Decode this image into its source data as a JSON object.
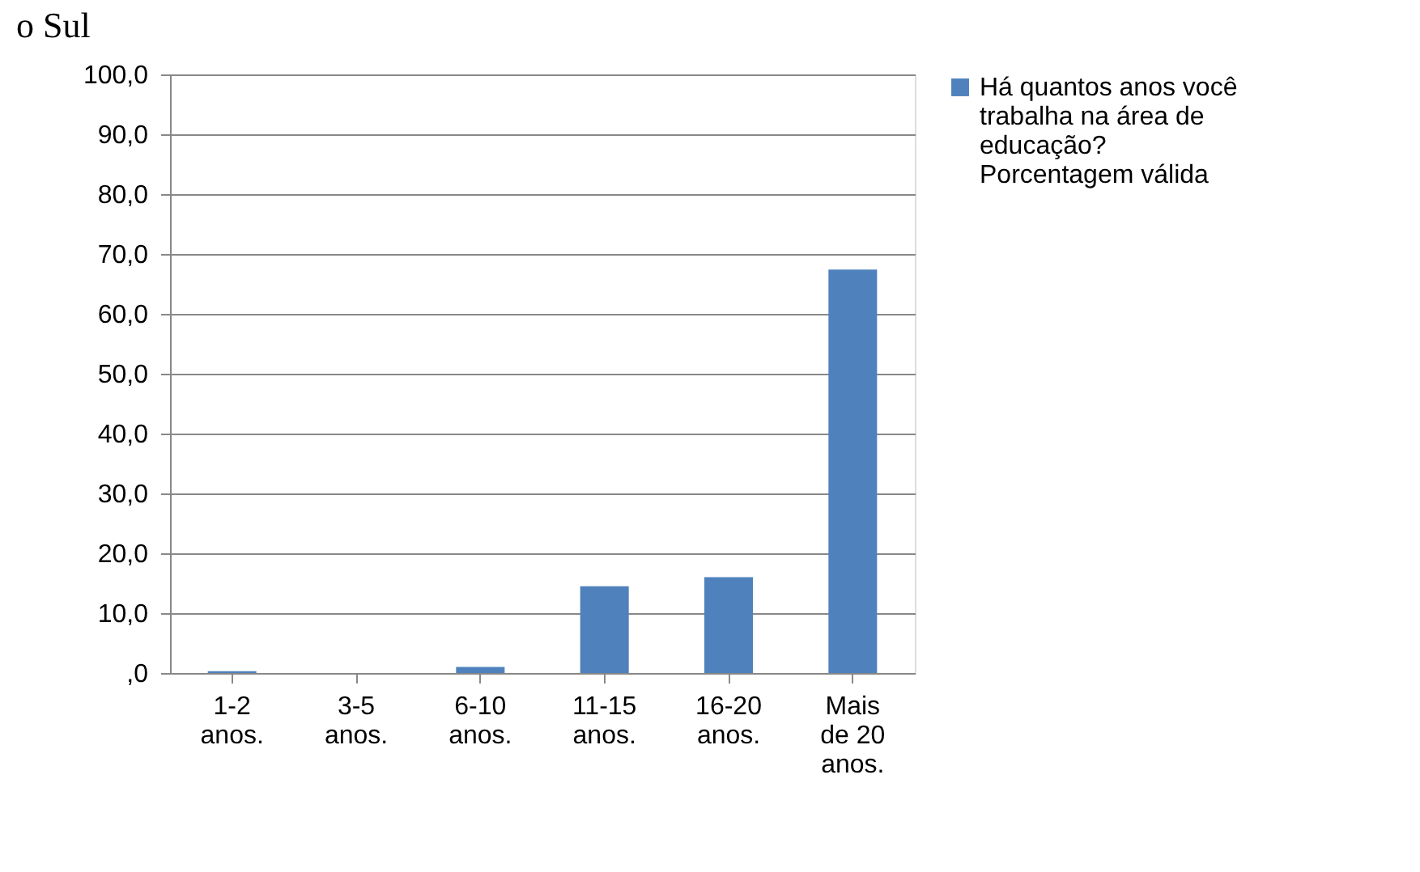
{
  "chart_data": {
    "type": "bar",
    "annotations": [
      "o Sul"
    ],
    "categories": [
      "1-2 anos.",
      "3-5 anos.",
      "6-10 anos.",
      "11-15 anos.",
      "16-20 anos.",
      "Mais de 20 anos."
    ],
    "series": [
      {
        "name": "Há quantos anos você trabalha na área de educação? Porcentagem válida",
        "color": "#4f81bd",
        "values": [
          0.3,
          0.0,
          1.0,
          14.5,
          16.0,
          67.4
        ]
      }
    ],
    "ylim": [
      0,
      100
    ],
    "yticks": [
      {
        "value": 0,
        "label": ",0"
      },
      {
        "value": 10,
        "label": "10,0"
      },
      {
        "value": 20,
        "label": "20,0"
      },
      {
        "value": 30,
        "label": "30,0"
      },
      {
        "value": 40,
        "label": "40,0"
      },
      {
        "value": 50,
        "label": "50,0"
      },
      {
        "value": 60,
        "label": "60,0"
      },
      {
        "value": 70,
        "label": "70,0"
      },
      {
        "value": 80,
        "label": "80,0"
      },
      {
        "value": 90,
        "label": "90,0"
      },
      {
        "value": 100,
        "label": "100,0"
      }
    ],
    "grid": "y",
    "legend": "right"
  }
}
